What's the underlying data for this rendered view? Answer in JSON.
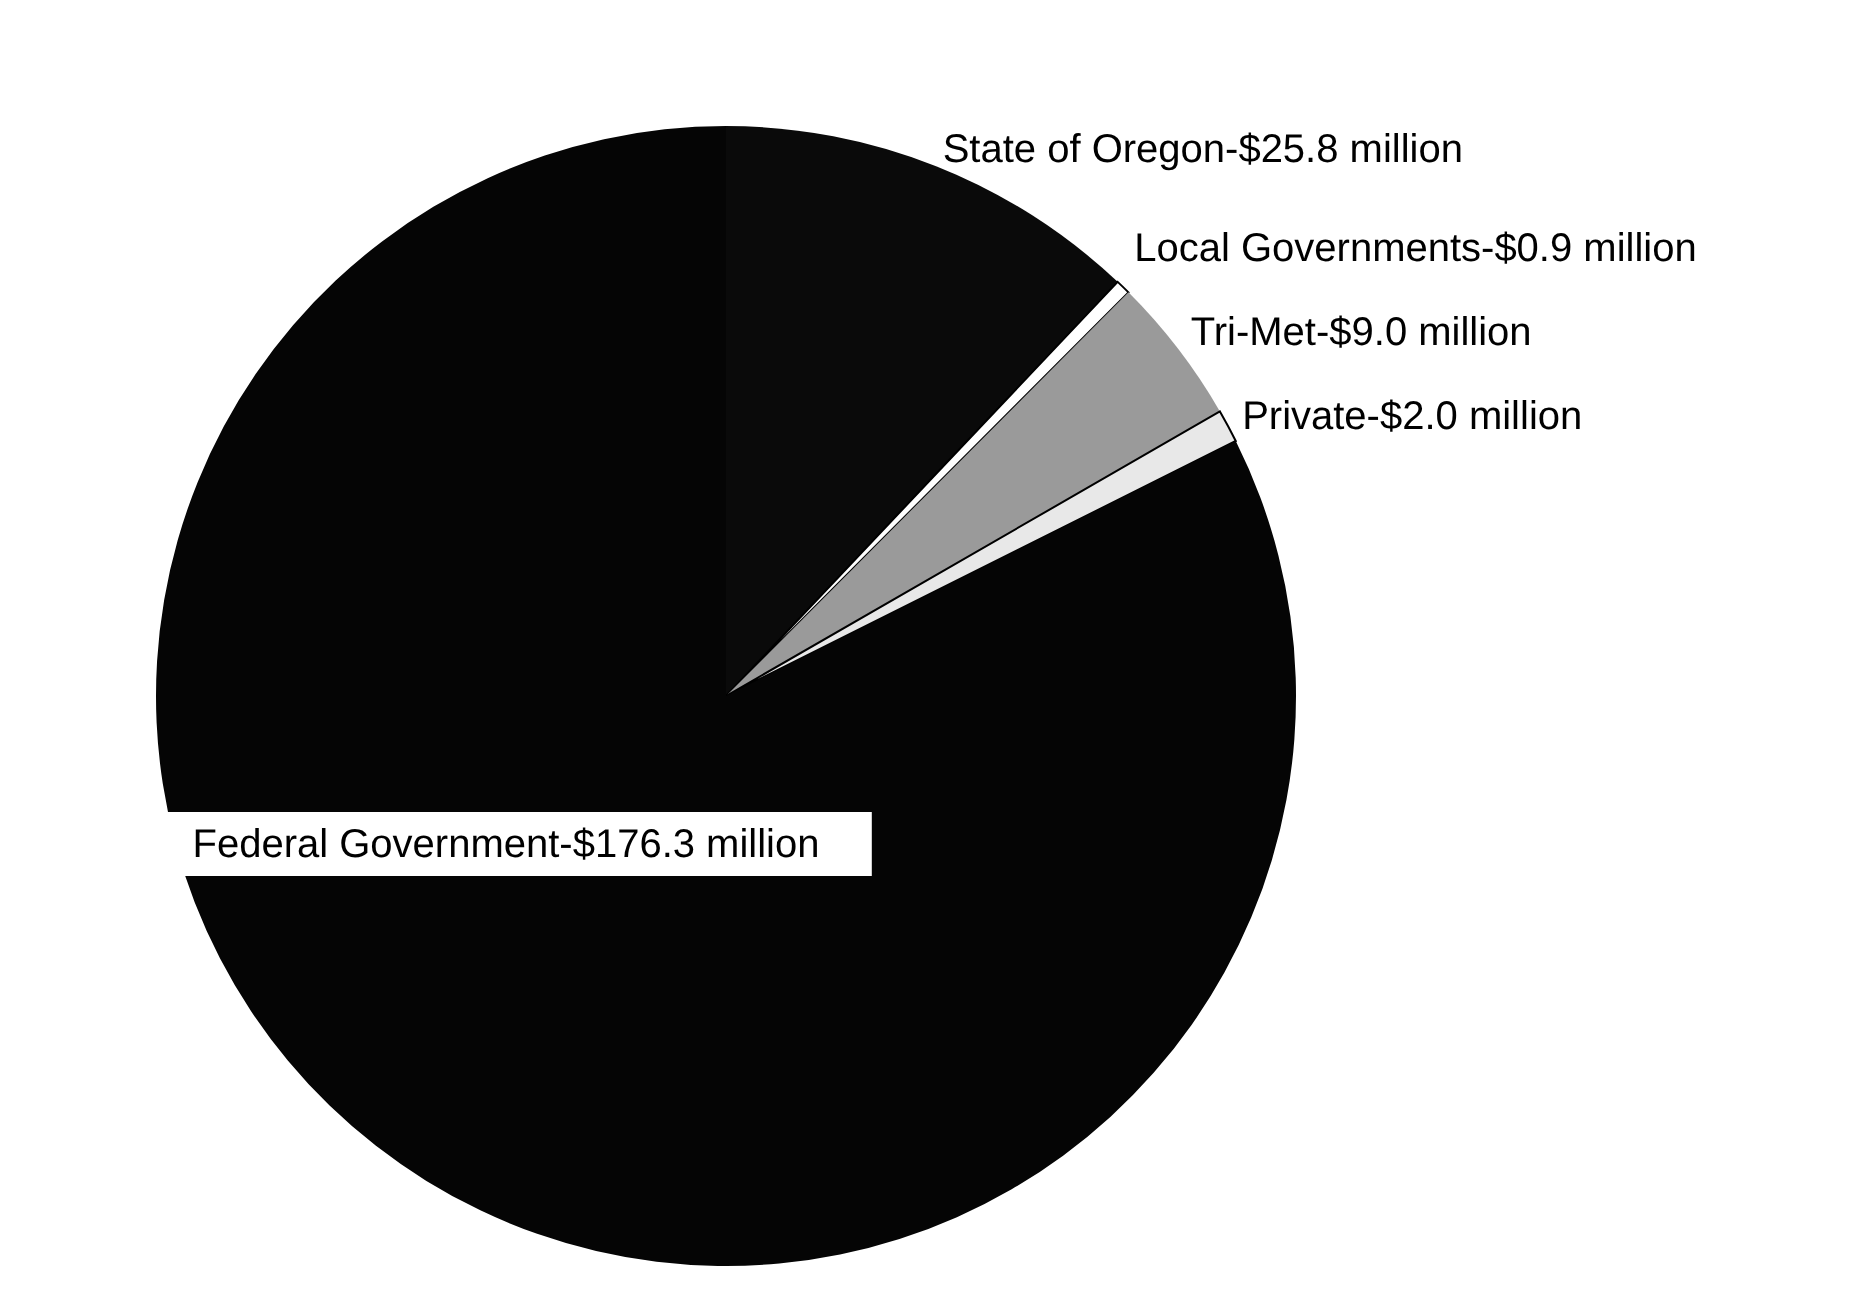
{
  "chart_data": {
    "type": "pie",
    "categories": [
      "State of Oregon",
      "Local Governments",
      "Tri-Met",
      "Private",
      "Federal Government"
    ],
    "values": [
      25.8,
      0.9,
      9.0,
      2.0,
      176.3
    ],
    "value_labels": [
      "$25.8 million",
      "$0.9 million",
      "$9.0 million",
      "$2.0 million",
      "$176.3 million"
    ],
    "colors": [
      "#0a0a0a",
      "#ffffff",
      "#9a9a9a",
      "#e8e8e8",
      "#050505"
    ]
  }
}
